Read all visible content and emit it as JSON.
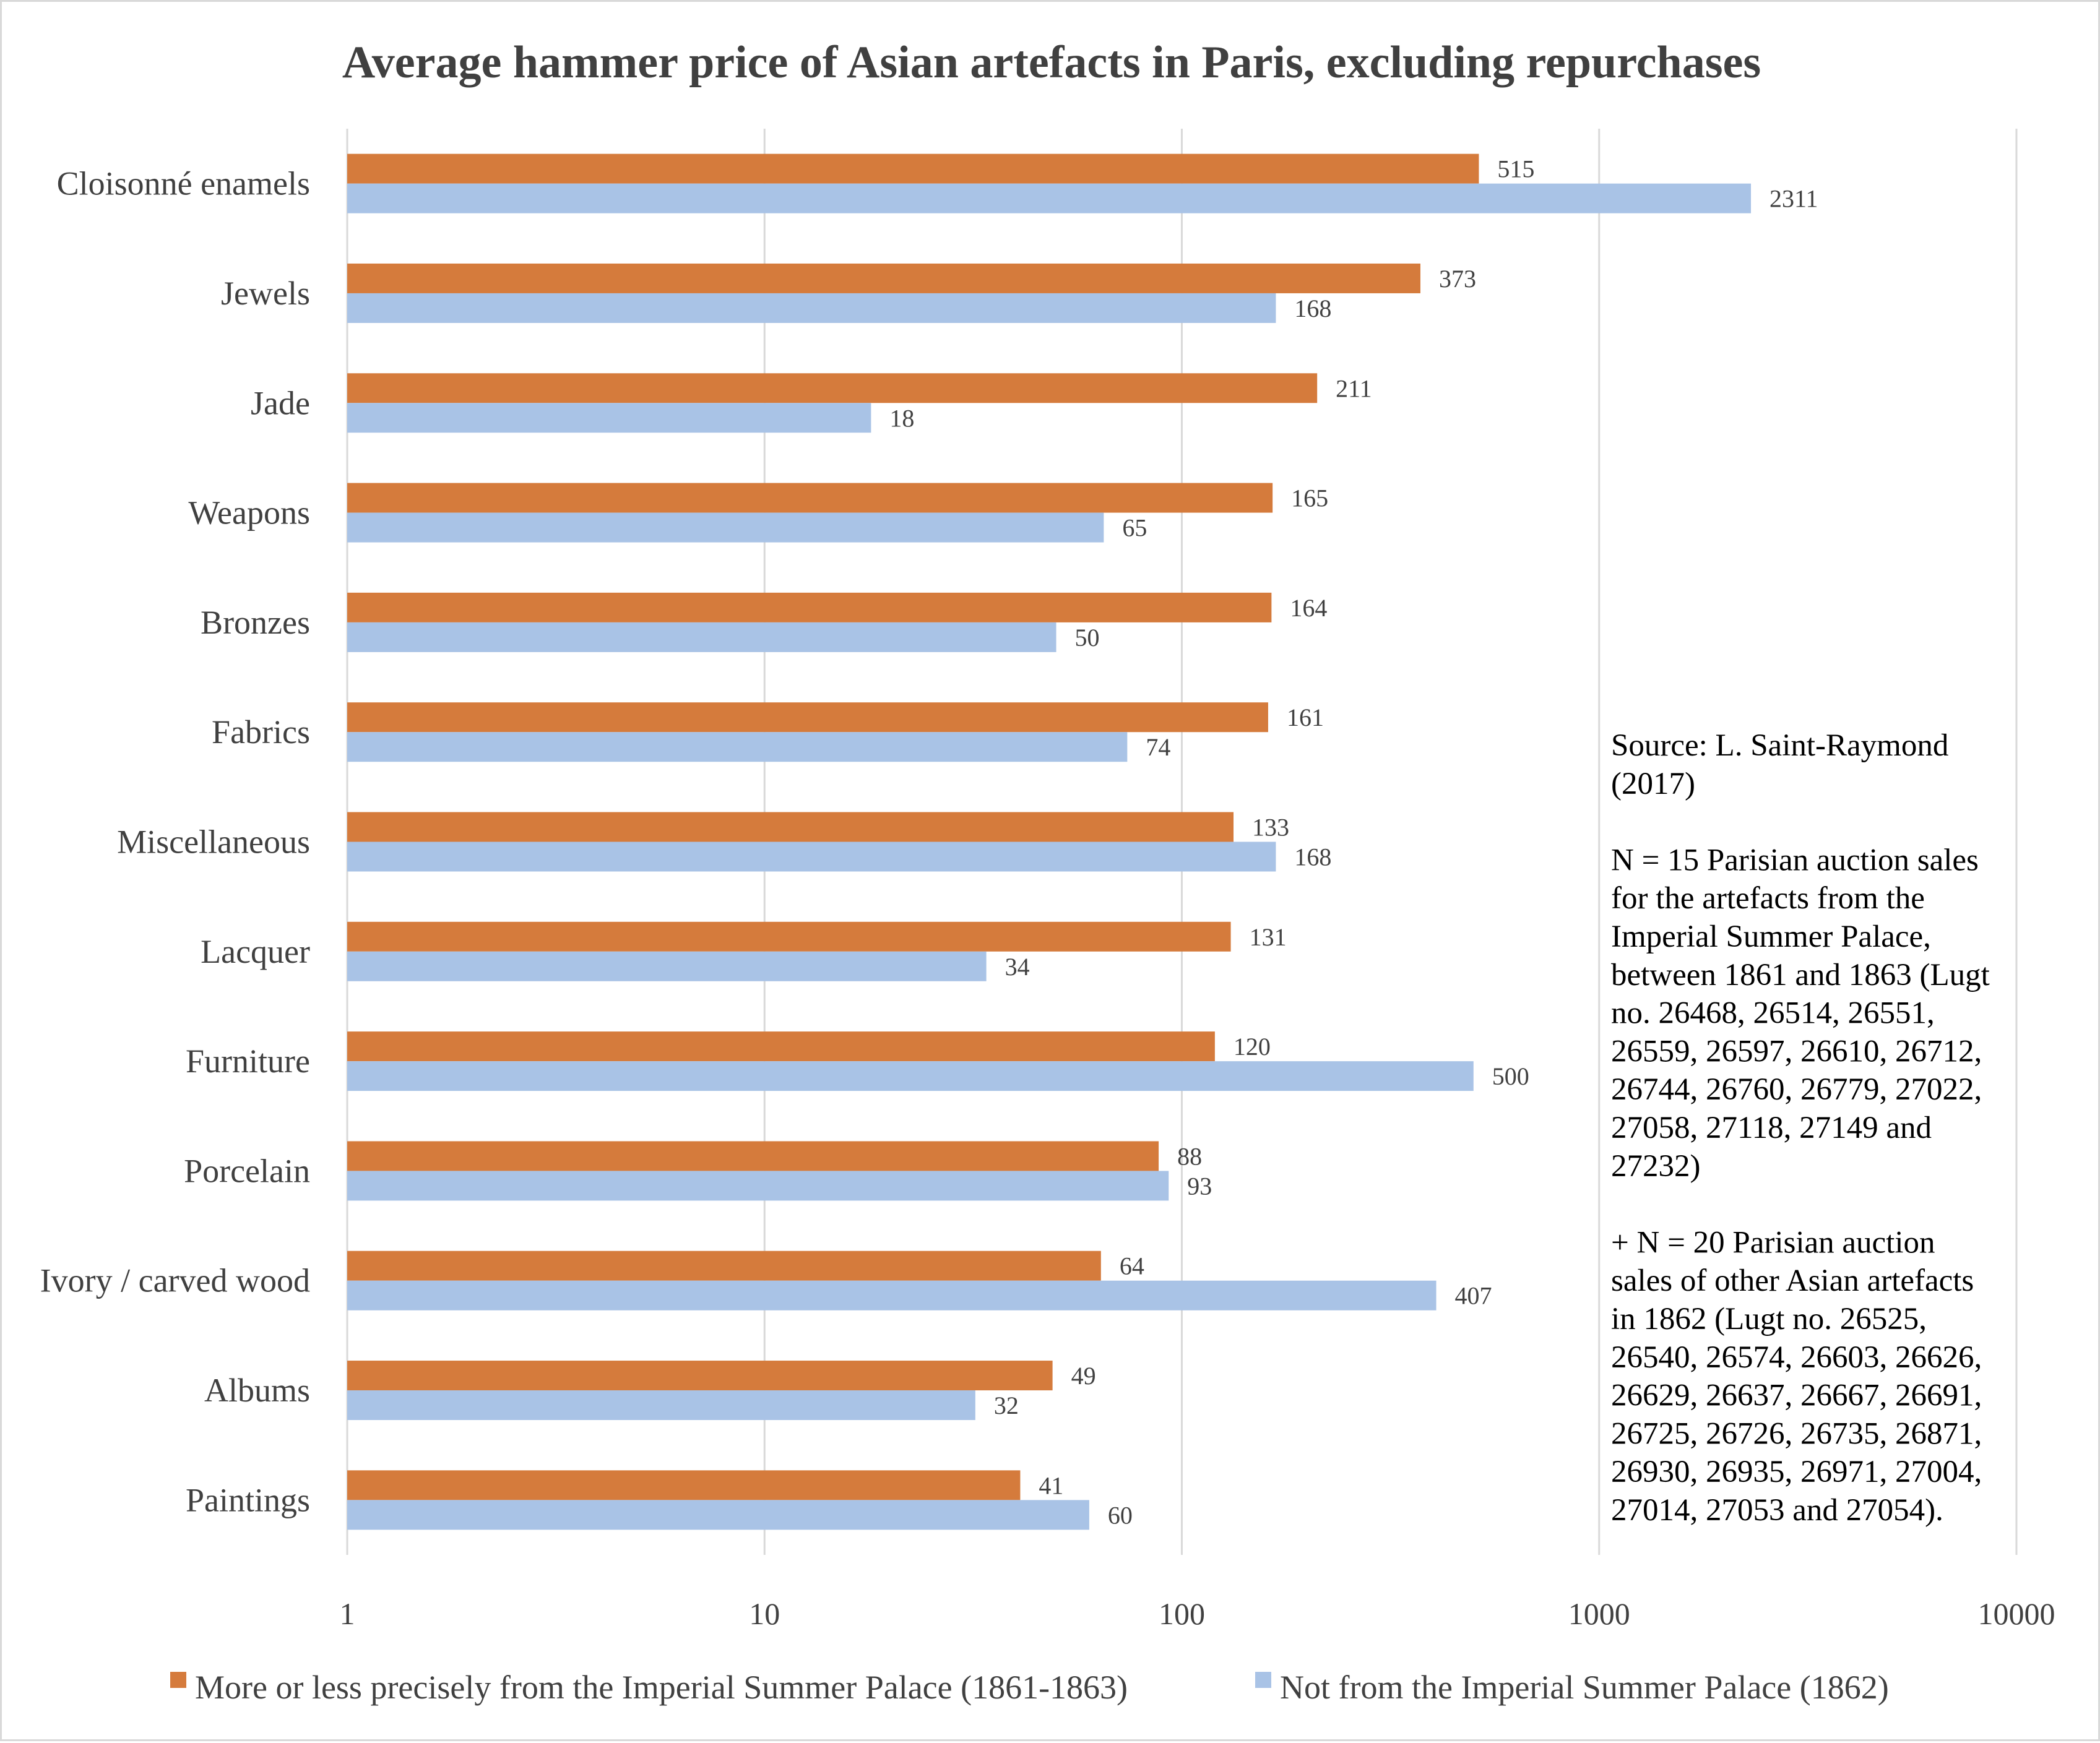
{
  "chart_data": {
    "type": "bar",
    "orientation": "horizontal",
    "title": "Average hammer price of Asian artefacts in Paris, excluding repurchases",
    "xscale": "log",
    "xlim": [
      1,
      10000
    ],
    "xticks": [
      "1",
      "10",
      "100",
      "1000",
      "10000"
    ],
    "grid": true,
    "legend_position": "bottom",
    "categories": [
      "Cloisonné enamels",
      "Jewels",
      "Jade",
      "Weapons",
      "Bronzes",
      "Fabrics",
      "Miscellaneous",
      "Lacquer",
      "Furniture",
      "Porcelain",
      "Ivory / carved wood",
      "Albums",
      "Paintings"
    ],
    "series": [
      {
        "name": "More or less precisely from the Imperial Summer Palace (1861-1863)",
        "color": "#D57B3C",
        "values": [
          515,
          373,
          211,
          165,
          164,
          161,
          133,
          131,
          120,
          88,
          64,
          49,
          41
        ]
      },
      {
        "name": "Not from the Imperial Summer Palace (1862)",
        "color": "#A9C3E6",
        "values": [
          2311,
          168,
          18,
          65,
          50,
          74,
          168,
          34,
          500,
          93,
          407,
          32,
          60
        ]
      }
    ],
    "annotation_lines": [
      "Source: L. Saint-Raymond",
      "(2017)",
      "",
      "N = 15 Parisian auction sales",
      "for the artefacts from the",
      "Imperial Summer Palace,",
      "between 1861 and 1863 (Lugt",
      "no. 26468, 26514, 26551,",
      "26559, 26597, 26610, 26712,",
      "26744, 26760, 26779, 27022,",
      "27058, 27118, 27149 and",
      "27232)",
      "",
      "+ N = 20 Parisian auction",
      "sales of other Asian artefacts",
      "in 1862 (Lugt no. 26525,",
      "26540, 26574, 26603, 26626,",
      "26629, 26637, 26667, 26691,",
      "26725, 26726, 26735, 26871,",
      "26930, 26935, 26971, 27004,",
      "27014, 27053 and 27054)."
    ]
  }
}
